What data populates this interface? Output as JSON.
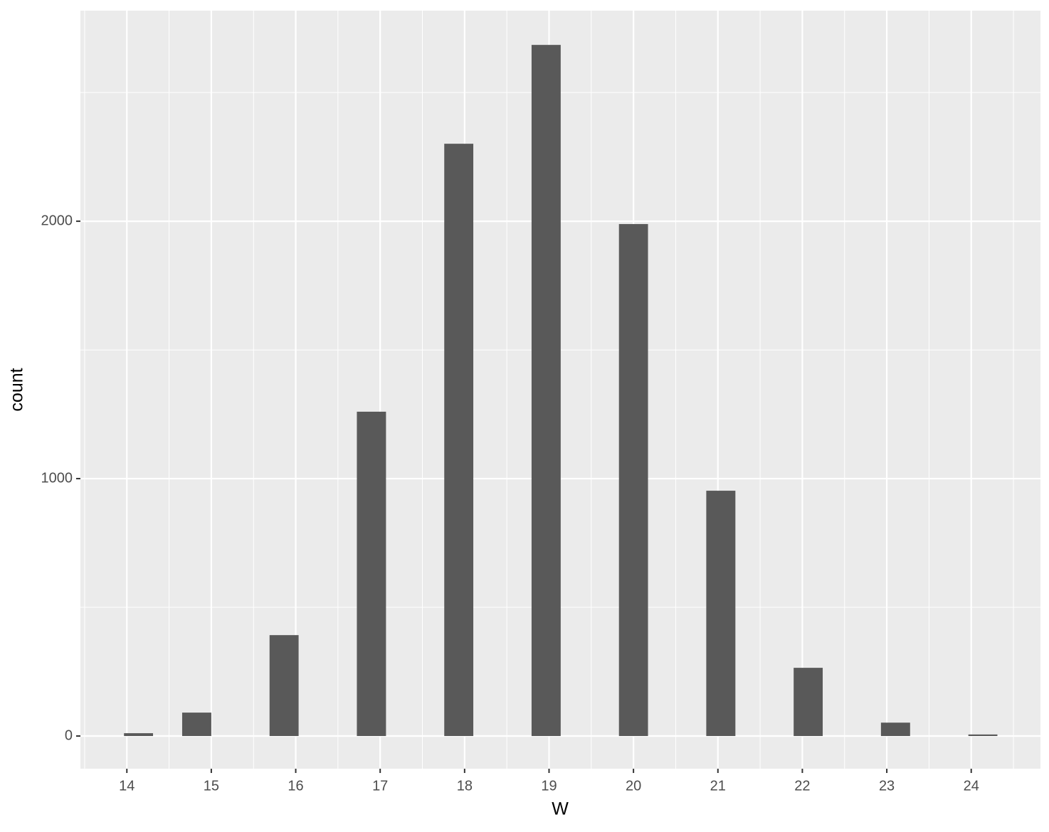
{
  "chart_data": {
    "type": "histogram",
    "x_label": "W",
    "y_label": "count",
    "bins": [
      13.966,
      14.31,
      14.655,
      15.0,
      15.345,
      15.69,
      16.034,
      16.379,
      16.724,
      17.069,
      17.414,
      17.759,
      18.103,
      18.448,
      18.793,
      19.138,
      19.483,
      19.828,
      20.172,
      20.517,
      20.862,
      21.207,
      21.552,
      21.897,
      22.241,
      22.586,
      22.931,
      23.276,
      23.621,
      23.966,
      24.31
    ],
    "values": [
      11,
      0,
      91,
      0,
      0,
      392,
      0,
      0,
      1260,
      0,
      0,
      2301,
      0,
      0,
      2685,
      0,
      0,
      1989,
      0,
      0,
      953,
      0,
      0,
      265,
      0,
      0,
      52,
      0,
      0,
      6
    ],
    "color": "#595959",
    "xlim": [
      13.45,
      24.82
    ],
    "xticks": [
      14,
      15,
      16,
      17,
      18,
      19,
      20,
      21,
      22,
      23,
      24
    ],
    "ylim": [
      -127,
      2818
    ],
    "yticks": [
      0,
      1000,
      2000
    ],
    "grid": true
  }
}
